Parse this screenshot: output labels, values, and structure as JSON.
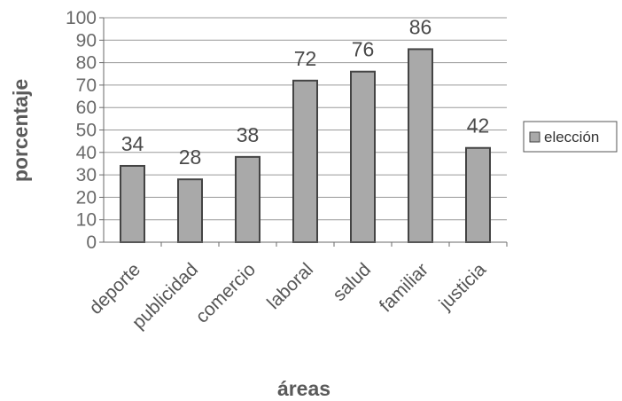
{
  "chart_data": {
    "type": "bar",
    "categories": [
      "deporte",
      "publicidad",
      "comercio",
      "laboral",
      "salud",
      "familiar",
      "justicia"
    ],
    "series": [
      {
        "name": "elección",
        "values": [
          34,
          28,
          38,
          72,
          76,
          86,
          42
        ]
      }
    ],
    "data_labels": [
      "34",
      "28",
      "38",
      "72",
      "76",
      "86",
      "42"
    ],
    "xlabel": "áreas",
    "ylabel": "porcentaje",
    "ylim": [
      0,
      100
    ],
    "yticks": [
      0,
      10,
      20,
      30,
      40,
      50,
      60,
      70,
      80,
      90,
      100
    ],
    "grid": true,
    "legend_position": "right",
    "colors": {
      "bar_fill": "#a9a9a9",
      "bar_stroke": "#444444",
      "gridline": "#9a9a9a",
      "axis": "#6a6a6a"
    }
  }
}
